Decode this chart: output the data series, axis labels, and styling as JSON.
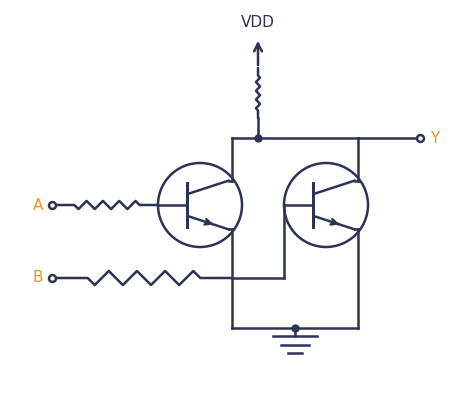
{
  "title": "VDD",
  "label_A": "A",
  "label_B": "B",
  "label_Y": "Y",
  "line_color": "#2d3355",
  "orange_color": "#e8961e",
  "bg_color": "#ffffff",
  "line_width": 1.8,
  "fig_width": 4.74,
  "fig_height": 3.94
}
